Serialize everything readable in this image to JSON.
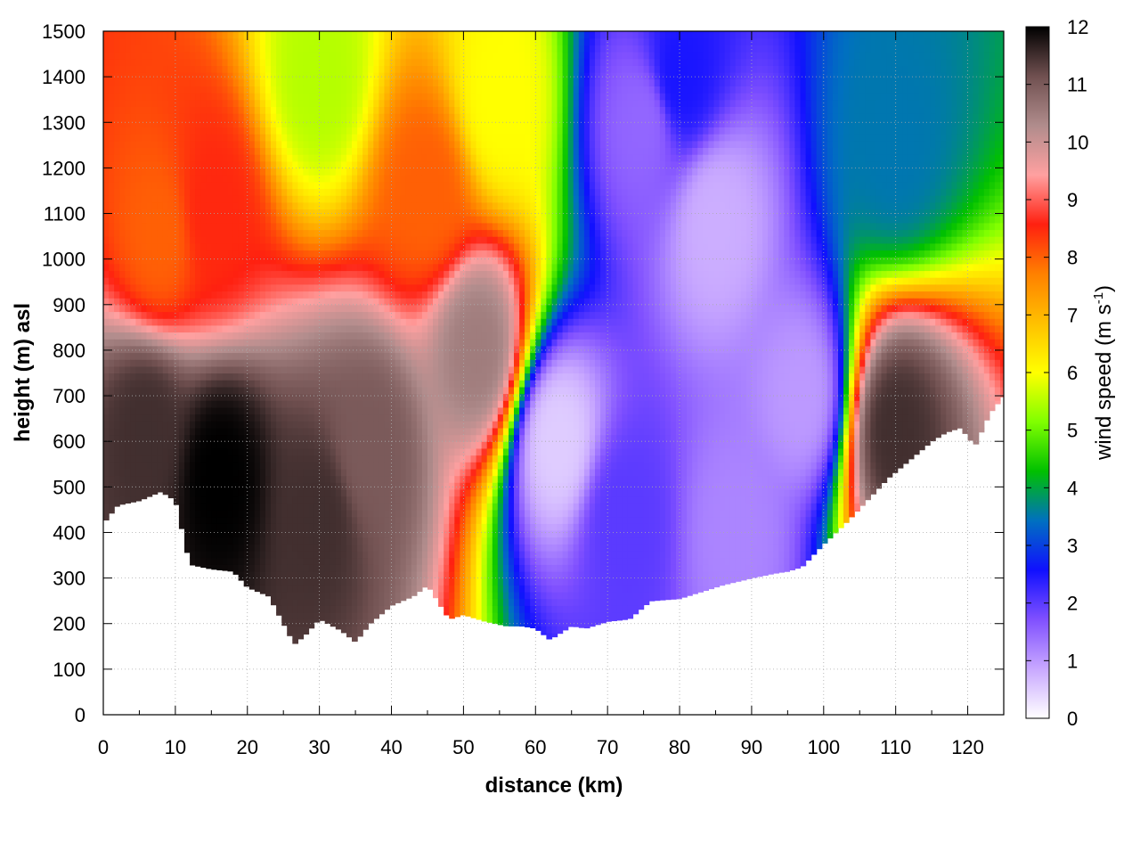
{
  "chart_data": {
    "type": "heatmap",
    "title": "",
    "xlabel": "distance (km)",
    "ylabel": "height (m) asl",
    "xlim": [
      0,
      125
    ],
    "ylim": [
      0,
      1500
    ],
    "x_ticks": [
      0,
      10,
      20,
      30,
      40,
      50,
      60,
      70,
      80,
      90,
      100,
      110,
      120
    ],
    "y_ticks": [
      0,
      100,
      200,
      300,
      400,
      500,
      600,
      700,
      800,
      900,
      1000,
      1100,
      1200,
      1300,
      1400,
      1500
    ],
    "grid": "dotted",
    "colorbar": {
      "label": "wind speed (m s",
      "label_superscript": "-1",
      "label_close": ")",
      "range": [
        0,
        12
      ],
      "ticks": [
        0,
        1,
        2,
        3,
        4,
        5,
        6,
        7,
        8,
        9,
        10,
        11,
        12
      ],
      "colormap": [
        "#ffffff",
        "#c8a8ff",
        "#8050ff",
        "#1010ff",
        "#0070c0",
        "#00c000",
        "#80ff00",
        "#ffff00",
        "#ffc000",
        "#ff8000",
        "#ff2010",
        "#ffa0a0",
        "#b08c8c",
        "#705050",
        "#000000"
      ]
    },
    "terrain_height_m": {
      "distance_km": [
        0,
        2,
        5,
        8,
        10,
        12,
        15,
        18,
        20,
        23,
        25,
        26.5,
        28,
        30,
        33,
        35,
        37,
        40,
        43,
        45,
        48,
        50,
        53,
        56,
        58,
        60,
        62,
        65,
        67,
        70,
        73,
        76,
        80,
        83,
        86,
        90,
        93,
        95,
        97,
        100,
        103,
        106,
        109,
        112,
        115,
        117,
        119,
        121,
        123,
        125
      ],
      "height_m": [
        420,
        460,
        470,
        490,
        470,
        330,
        320,
        315,
        280,
        260,
        200,
        155,
        175,
        210,
        185,
        160,
        200,
        240,
        260,
        285,
        210,
        220,
        205,
        195,
        195,
        190,
        165,
        195,
        190,
        205,
        210,
        250,
        255,
        270,
        285,
        300,
        310,
        315,
        325,
        375,
        420,
        470,
        520,
        560,
        600,
        620,
        630,
        590,
        660,
        700
      ]
    },
    "wind_field_features": [
      {
        "x_km": 6,
        "height_m": 620,
        "speed": 11.5
      },
      {
        "x_km": 16,
        "height_m": 520,
        "speed": 12
      },
      {
        "x_km": 30,
        "height_m": 430,
        "speed": 11.5
      },
      {
        "x_km": 37,
        "height_m": 580,
        "speed": 11
      },
      {
        "x_km": 52,
        "height_m": 800,
        "speed": 10.5
      },
      {
        "x_km": 110,
        "height_m": 620,
        "speed": 11.5
      },
      {
        "x_km": 63,
        "height_m": 600,
        "speed": 0.5
      },
      {
        "x_km": 72,
        "height_m": 430,
        "speed": 2
      },
      {
        "x_km": 85,
        "height_m": 1080,
        "speed": 0.8
      },
      {
        "x_km": 88,
        "height_m": 400,
        "speed": 1.2
      },
      {
        "x_km": 97,
        "height_m": 700,
        "speed": 1
      },
      {
        "x_km": 80,
        "height_m": 1400,
        "speed": 2.5
      },
      {
        "x_km": 75,
        "height_m": 1300,
        "speed": 1.5
      },
      {
        "x_km": 110,
        "height_m": 1250,
        "speed": 3.5
      },
      {
        "x_km": 8,
        "height_m": 1050,
        "speed": 8
      },
      {
        "x_km": 15,
        "height_m": 1100,
        "speed": 8.5
      },
      {
        "x_km": 45,
        "height_m": 1150,
        "speed": 8
      },
      {
        "x_km": 30,
        "height_m": 1400,
        "speed": 5.5
      },
      {
        "x_km": 55,
        "height_m": 1350,
        "speed": 6
      }
    ]
  }
}
